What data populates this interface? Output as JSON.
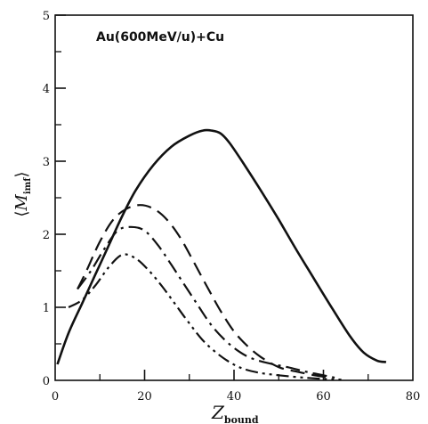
{
  "chart_data": {
    "type": "line",
    "title": "Au(600MeV/u)+Cu",
    "xlabel": {
      "main": "Z",
      "sub": "bound"
    },
    "ylabel": {
      "left": "⟨",
      "main": "M",
      "sub": "imf",
      "right": "⟩"
    },
    "xlim": [
      0,
      80
    ],
    "ylim": [
      0,
      5
    ],
    "x_ticks": [
      0,
      20,
      40,
      60,
      80
    ],
    "y_ticks": [
      0,
      1,
      2,
      3,
      4,
      5
    ],
    "x_minor_ticks": [
      10,
      30,
      50,
      70
    ],
    "y_minor_ticks": [
      0.5,
      1.5,
      2.5,
      3.5,
      4.5
    ],
    "grid": false,
    "legend": "none",
    "series": [
      {
        "style": "solid",
        "x": [
          0.5,
          3,
          6,
          9,
          12,
          15,
          18,
          22,
          26,
          30,
          33,
          35,
          37,
          39,
          42,
          46,
          50,
          54,
          58,
          62,
          66,
          69,
          72,
          74
        ],
        "y": [
          0.22,
          0.65,
          1.05,
          1.45,
          1.85,
          2.25,
          2.6,
          2.95,
          3.2,
          3.35,
          3.42,
          3.42,
          3.38,
          3.25,
          2.98,
          2.6,
          2.2,
          1.78,
          1.38,
          0.98,
          0.6,
          0.38,
          0.27,
          0.25
        ]
      },
      {
        "style": "long-dash",
        "x": [
          5,
          7,
          10,
          13,
          16,
          19,
          22,
          25,
          28,
          31,
          34,
          37,
          40,
          43,
          46,
          50,
          54,
          58,
          61
        ],
        "y": [
          1.25,
          1.5,
          1.9,
          2.2,
          2.35,
          2.4,
          2.35,
          2.2,
          1.95,
          1.62,
          1.28,
          0.95,
          0.67,
          0.47,
          0.32,
          0.18,
          0.12,
          0.07,
          0.04
        ]
      },
      {
        "style": "dash-dot",
        "x": [
          5,
          8,
          11,
          14,
          17,
          20,
          23,
          26,
          29,
          32,
          35,
          38,
          41,
          44,
          48,
          52,
          56,
          60,
          63
        ],
        "y": [
          1.25,
          1.5,
          1.8,
          2.05,
          2.1,
          2.05,
          1.85,
          1.58,
          1.3,
          1.02,
          0.75,
          0.55,
          0.4,
          0.3,
          0.23,
          0.18,
          0.12,
          0.07,
          0.03
        ]
      },
      {
        "style": "dash-dot-dot",
        "x": [
          3,
          6,
          9,
          12,
          15,
          18,
          21,
          24,
          27,
          30,
          33,
          36,
          39,
          42,
          46,
          50,
          55,
          60,
          64
        ],
        "y": [
          1.0,
          1.1,
          1.3,
          1.55,
          1.72,
          1.67,
          1.5,
          1.28,
          1.03,
          0.78,
          0.55,
          0.38,
          0.25,
          0.16,
          0.1,
          0.07,
          0.04,
          0.02,
          0.01
        ]
      }
    ]
  }
}
